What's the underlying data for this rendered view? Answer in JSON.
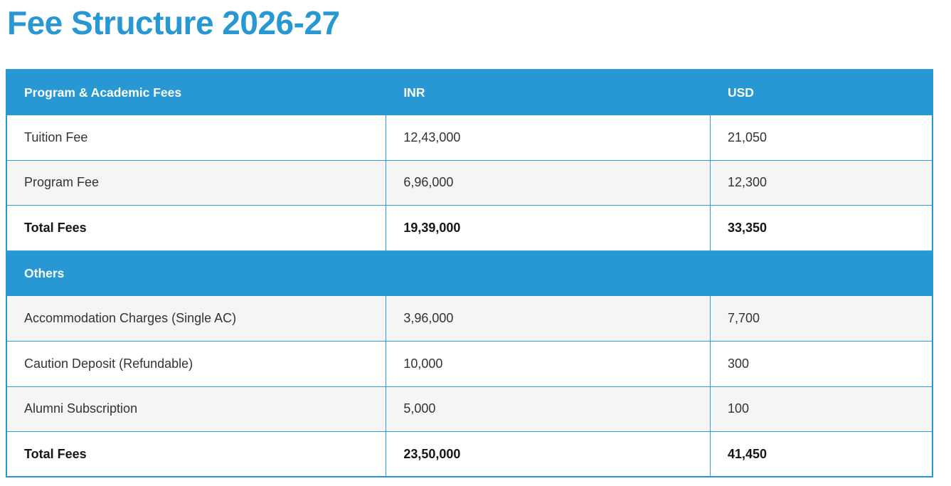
{
  "page_title": "Fee Structure 2026-27",
  "colors": {
    "accent_blue": "#2798d4",
    "row_alt_gray": "#f5f5f6",
    "border_blue": "#2f9dd6",
    "body_text": "#333333"
  },
  "table": {
    "sections": [
      {
        "header": {
          "label": "Program & Academic Fees",
          "inr": "INR",
          "usd": "USD"
        },
        "rows": [
          {
            "label": "Tuition Fee",
            "inr": "12,43,000",
            "usd": "21,050"
          },
          {
            "label": "Program Fee",
            "inr": "6,96,000",
            "usd": "12,300"
          },
          {
            "label": "Total Fees",
            "inr": "19,39,000",
            "usd": "33,350"
          }
        ]
      },
      {
        "header": {
          "label": "Others",
          "inr": "",
          "usd": ""
        },
        "rows": [
          {
            "label": "Accommodation Charges (Single AC)",
            "inr": "3,96,000",
            "usd": "7,700"
          },
          {
            "label": "Caution Deposit (Refundable)",
            "inr": "10,000",
            "usd": "300"
          },
          {
            "label": "Alumni Subscription",
            "inr": "5,000",
            "usd": "100"
          },
          {
            "label": "Total Fees",
            "inr": "23,50,000",
            "usd": "41,450"
          }
        ]
      }
    ]
  }
}
